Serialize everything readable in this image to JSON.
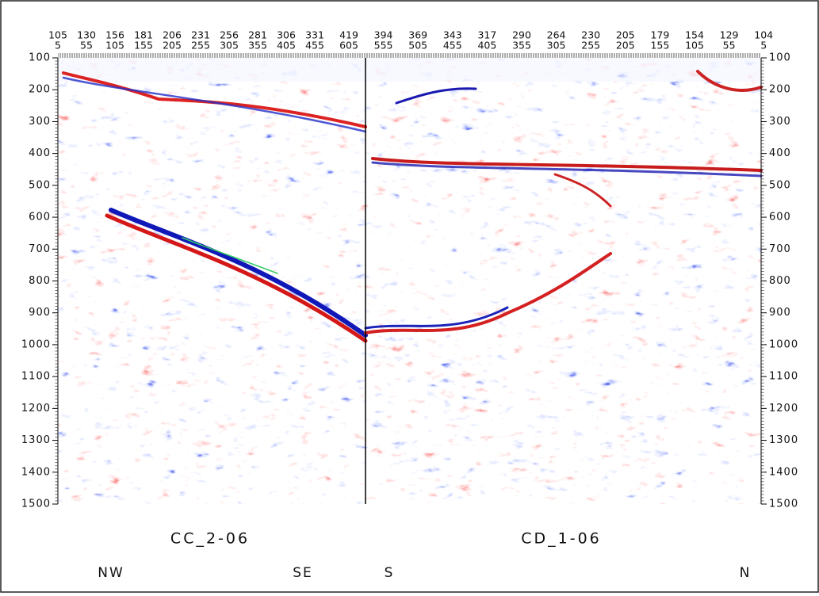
{
  "top_labels": {
    "row1": [
      "105",
      "130",
      "156",
      "181",
      "206",
      "231",
      "256",
      "281",
      "306",
      "331",
      "419",
      "394",
      "369",
      "343",
      "317",
      "290",
      "264",
      "230",
      "205",
      "179",
      "154",
      "129",
      "104"
    ],
    "row2": [
      "5",
      "55",
      "105",
      "155",
      "205",
      "255",
      "305",
      "355",
      "405",
      "455",
      "605",
      "555",
      "505",
      "455",
      "405",
      "355",
      "305",
      "255",
      "205",
      "155",
      "105",
      "55",
      "5"
    ]
  },
  "left_axis": {
    "ticks": [
      100,
      200,
      300,
      400,
      500,
      600,
      700,
      800,
      900,
      1000,
      1100,
      1200,
      1300,
      1400,
      1500
    ]
  },
  "right_axis": {
    "ticks": [
      100,
      200,
      300,
      400,
      500,
      600,
      700,
      800,
      900,
      1000,
      1100,
      1200,
      1300,
      1400,
      1500
    ]
  },
  "sections": [
    {
      "name": "CC_2-06",
      "left": "NW",
      "right": "SE"
    },
    {
      "name": "CD_1-06",
      "left": "S",
      "right": "N"
    }
  ]
}
